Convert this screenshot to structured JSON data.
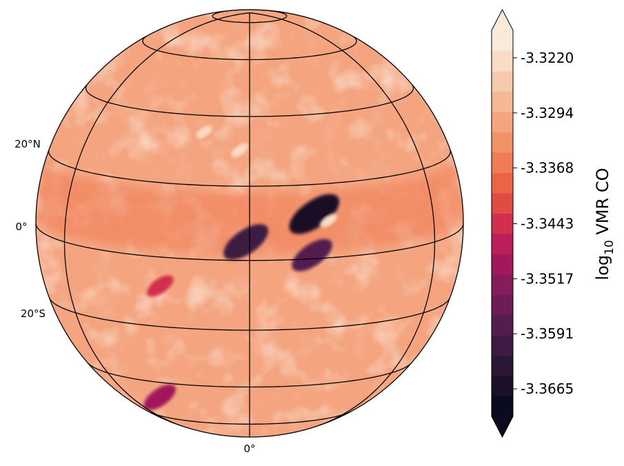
{
  "map": {
    "projection": "orthographic",
    "lat_labels": [
      "20°N",
      "0°",
      "20°S"
    ],
    "lon_labels": [
      "0°"
    ]
  },
  "colorbar": {
    "label_main": "log",
    "label_sub": "10",
    "label_rest": " VMR CO",
    "ticks": [
      "-3.3220",
      "-3.3294",
      "-3.3368",
      "-3.3443",
      "-3.3517",
      "-3.3591",
      "-3.3665"
    ],
    "extend": "both",
    "colors": [
      "#0b0a1e",
      "#1a1128",
      "#2b1736",
      "#3e1b43",
      "#531d4d",
      "#6c1d56",
      "#871c5c",
      "#a2185c",
      "#bb1e58",
      "#d22f4e",
      "#e24a44",
      "#eb6445",
      "#f07c55",
      "#f29269",
      "#f4a57f",
      "#f5b895",
      "#f6cbad",
      "#f8dcc5",
      "#faeadc"
    ]
  },
  "chart_data": {
    "type": "heatmap",
    "title": "",
    "variable": "log10 VMR CO",
    "value_range": [
      -3.3702,
      -3.3183
    ],
    "colorbar_ticks": [
      -3.322,
      -3.3294,
      -3.3368,
      -3.3443,
      -3.3517,
      -3.3591,
      -3.3665
    ],
    "background_level": -3.329,
    "features": [
      {
        "lat": 12,
        "lon": 18,
        "value": -3.367
      },
      {
        "lat": 10,
        "lon": 22,
        "value": -3.322
      },
      {
        "lat": 5,
        "lon": -1,
        "value": -3.362
      },
      {
        "lat": 1,
        "lon": 17,
        "value": -3.358
      },
      {
        "lat": -8,
        "lon": -25,
        "value": -3.345
      },
      {
        "lat": -47,
        "lon": -38,
        "value": -3.35
      },
      {
        "lat": 30,
        "lon": -3,
        "value": -3.322
      },
      {
        "lat": 35,
        "lon": -15,
        "value": -3.323
      }
    ]
  }
}
